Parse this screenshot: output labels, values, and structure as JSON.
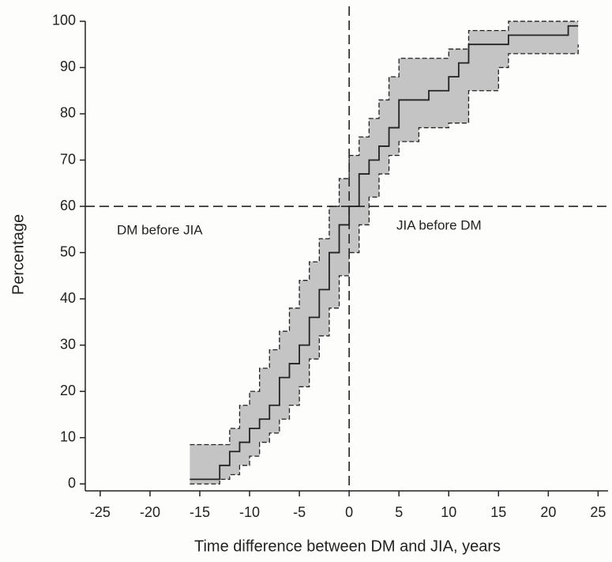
{
  "chart_data": {
    "type": "step",
    "x_label": "Time difference between DM and JIA, years",
    "y_label": "Percentage",
    "annotations": [
      "DM before JIA",
      "JIA before DM"
    ],
    "x": [
      -16,
      -13,
      -12,
      -11,
      -10,
      -9,
      -8,
      -7,
      -6,
      -5,
      -4,
      -3,
      -2,
      -1,
      0,
      1,
      2,
      3,
      4,
      5,
      7,
      8,
      10,
      11,
      12,
      15,
      16,
      22,
      23
    ],
    "series": [
      {
        "color": "#222222",
        "values": [
          1,
          4,
          7,
          9,
          12,
          14,
          17,
          23,
          26,
          30,
          36,
          42,
          50,
          56,
          60,
          67,
          70,
          73,
          77,
          83,
          83,
          85,
          88,
          91,
          95,
          95,
          97,
          99,
          99
        ]
      },
      {
        "color": "#222222",
        "values": [
          8.5,
          8.5,
          12,
          17,
          20,
          25,
          29,
          33,
          38,
          44,
          48,
          53,
          60,
          66,
          71,
          75,
          79,
          83,
          88,
          92,
          92,
          92,
          94,
          94,
          98,
          98,
          100,
          100,
          100
        ]
      },
      {
        "color": "#222222",
        "values": [
          0,
          1,
          2,
          4,
          6,
          9,
          11,
          14,
          17,
          21,
          27,
          32,
          38,
          45,
          50,
          56,
          62,
          67,
          71,
          74,
          77,
          77,
          78,
          78,
          85,
          90,
          93,
          93,
          95
        ]
      }
    ],
    "band_color": "#c4c4c4",
    "vline": 0,
    "hline": 60,
    "xlim": [
      -26.5,
      26
    ],
    "ylim": [
      -1.5,
      100.5
    ],
    "xticks": [
      -25,
      -20,
      -15,
      -10,
      -5,
      0,
      5,
      10,
      15,
      20,
      25
    ],
    "yticks": [
      0,
      10,
      20,
      30,
      40,
      50,
      60,
      70,
      80,
      90,
      100
    ]
  }
}
